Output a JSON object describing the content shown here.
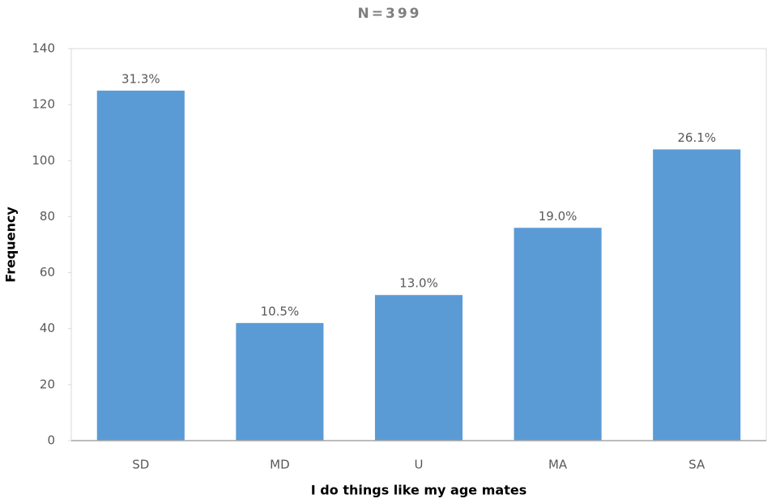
{
  "chart_data": {
    "type": "bar",
    "title": "N=399",
    "x_label": "I do things like my age mates",
    "y_label": "Frequency",
    "categories": [
      "SD",
      "MD",
      "U",
      "MA",
      "SA"
    ],
    "values": [
      125,
      42,
      52,
      76,
      104
    ],
    "percent_labels": [
      "31.3%",
      "10.5%",
      "13.0%",
      "19.0%",
      "26.1%"
    ],
    "color": "#5b9bd5",
    "ylim": [
      0,
      140
    ],
    "yticks": [
      0,
      20,
      40,
      60,
      80,
      100,
      120,
      140
    ],
    "grid": false
  }
}
